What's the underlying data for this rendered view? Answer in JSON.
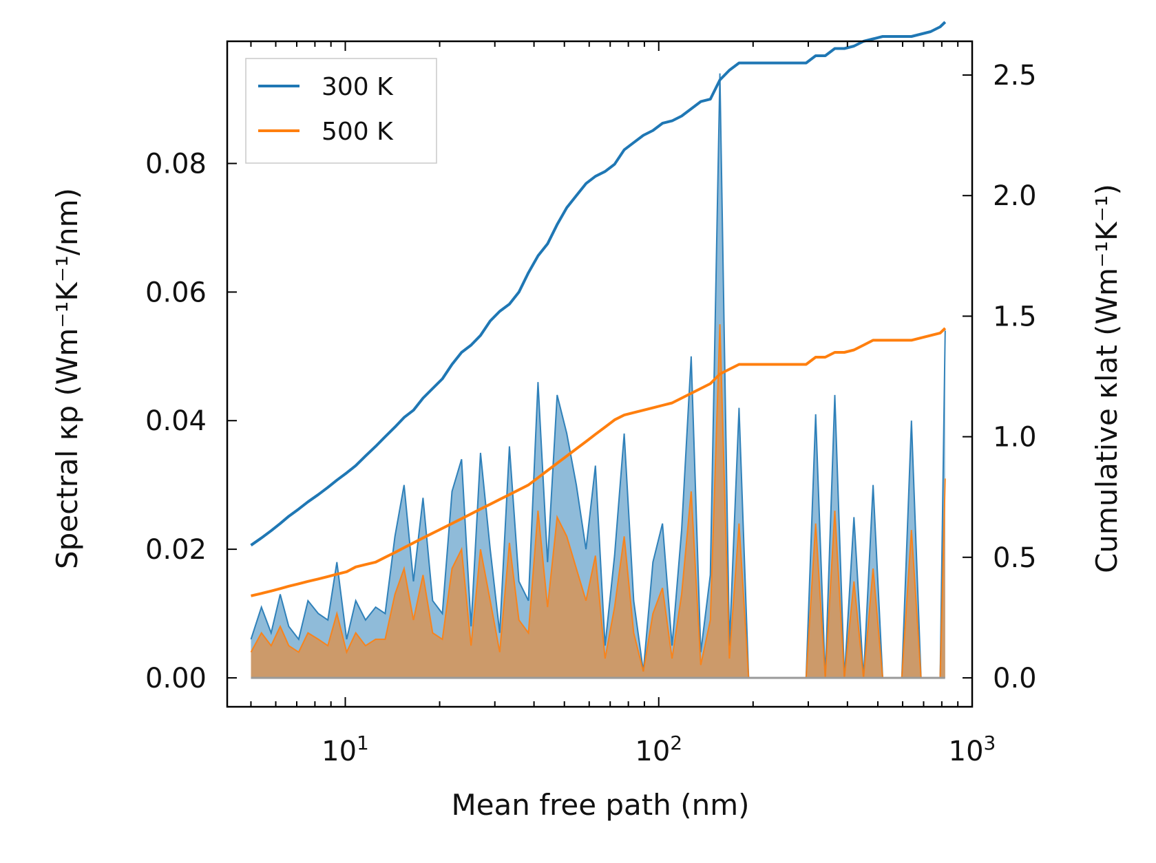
{
  "chart_data": {
    "type": "line",
    "xscale": "log",
    "xlabel": "Mean free path (nm)",
    "ylabel_left": "Spectral κp (Wm⁻¹K⁻¹/nm)",
    "ylabel_right": "Cumulative κlat (Wm⁻¹K⁻¹)",
    "xlim": [
      4.2,
      1000
    ],
    "ylim_left": [
      -0.0045,
      0.099
    ],
    "ylim_right": [
      -0.12,
      2.64
    ],
    "x_ticks": [
      {
        "value": 10,
        "label": "10",
        "exp": "1"
      },
      {
        "value": 100,
        "label": "10",
        "exp": "2"
      },
      {
        "value": 1000,
        "label": "10",
        "exp": "3"
      }
    ],
    "y_ticks_left": [
      "0.00",
      "0.02",
      "0.04",
      "0.06",
      "0.08"
    ],
    "y_ticks_right": [
      "0.0",
      "0.5",
      "1.0",
      "1.5",
      "2.0",
      "2.5"
    ],
    "legend": {
      "position": "top-left",
      "entries": [
        {
          "label": "300 K",
          "color": "#1f77b4"
        },
        {
          "label": "500 K",
          "color": "#ff7f0e"
        }
      ]
    },
    "x": [
      5.0,
      5.4,
      5.8,
      6.2,
      6.6,
      7.1,
      7.6,
      8.2,
      8.8,
      9.4,
      10.1,
      10.8,
      11.6,
      12.5,
      13.4,
      14.4,
      15.4,
      16.5,
      17.7,
      19.0,
      20.4,
      21.9,
      23.5,
      25.2,
      27.0,
      29.0,
      31.1,
      33.4,
      35.8,
      38.4,
      41.2,
      44.2,
      47.4,
      50.9,
      54.6,
      58.6,
      62.8,
      67.4,
      72.3,
      77.6,
      83.2,
      89.3,
      95.8,
      102.8,
      110.3,
      118.3,
      126.9,
      136.2,
      146.1,
      156.7,
      168.1,
      180.4,
      193.5,
      207.6,
      222.8,
      239.0,
      256.4,
      275.1,
      295.2,
      316.7,
      339.8,
      364.5,
      391.1,
      419.6,
      450.2,
      483.0,
      518.2,
      556.0,
      596.5,
      640.0,
      686.7,
      736.7,
      790.4,
      820.0
    ],
    "series": [
      {
        "name": "300 K",
        "color": "#1f77b4",
        "spectral": [
          0.006,
          0.011,
          0.007,
          0.013,
          0.008,
          0.006,
          0.012,
          0.01,
          0.009,
          0.018,
          0.006,
          0.012,
          0.009,
          0.011,
          0.01,
          0.022,
          0.03,
          0.015,
          0.028,
          0.012,
          0.01,
          0.029,
          0.034,
          0.008,
          0.035,
          0.02,
          0.007,
          0.036,
          0.015,
          0.012,
          0.046,
          0.018,
          0.044,
          0.038,
          0.03,
          0.02,
          0.033,
          0.005,
          0.019,
          0.038,
          0.012,
          0.001,
          0.018,
          0.024,
          0.005,
          0.023,
          0.05,
          0.004,
          0.016,
          0.094,
          0.005,
          0.042,
          0.0,
          0.0,
          0.0,
          0.0,
          0.0,
          0.0,
          0.0,
          0.041,
          0.0,
          0.044,
          0.0,
          0.025,
          0.0,
          0.03,
          0.0,
          0.0,
          0.0,
          0.04,
          0.0,
          0.0,
          0.0,
          0.054
        ],
        "cumulative": [
          0.55,
          0.58,
          0.61,
          0.64,
          0.67,
          0.7,
          0.73,
          0.76,
          0.79,
          0.82,
          0.85,
          0.88,
          0.92,
          0.96,
          1.0,
          1.04,
          1.08,
          1.11,
          1.16,
          1.2,
          1.24,
          1.3,
          1.35,
          1.38,
          1.42,
          1.48,
          1.52,
          1.55,
          1.6,
          1.68,
          1.75,
          1.8,
          1.88,
          1.95,
          2.0,
          2.05,
          2.08,
          2.1,
          2.13,
          2.19,
          2.22,
          2.25,
          2.27,
          2.3,
          2.31,
          2.33,
          2.36,
          2.39,
          2.4,
          2.48,
          2.52,
          2.55,
          2.55,
          2.55,
          2.55,
          2.55,
          2.55,
          2.55,
          2.55,
          2.58,
          2.58,
          2.61,
          2.61,
          2.62,
          2.64,
          2.65,
          2.66,
          2.66,
          2.66,
          2.66,
          2.67,
          2.68,
          2.7,
          2.72
        ]
      },
      {
        "name": "500 K",
        "color": "#ff7f0e",
        "spectral": [
          0.004,
          0.007,
          0.005,
          0.008,
          0.005,
          0.004,
          0.007,
          0.006,
          0.005,
          0.01,
          0.004,
          0.007,
          0.005,
          0.006,
          0.006,
          0.013,
          0.017,
          0.009,
          0.016,
          0.007,
          0.006,
          0.017,
          0.02,
          0.005,
          0.02,
          0.012,
          0.004,
          0.021,
          0.009,
          0.007,
          0.026,
          0.011,
          0.025,
          0.022,
          0.017,
          0.012,
          0.019,
          0.003,
          0.011,
          0.022,
          0.007,
          0.001,
          0.01,
          0.014,
          0.003,
          0.013,
          0.029,
          0.002,
          0.009,
          0.055,
          0.003,
          0.024,
          0.0,
          0.0,
          0.0,
          0.0,
          0.0,
          0.0,
          0.0,
          0.024,
          0.0,
          0.026,
          0.0,
          0.015,
          0.0,
          0.017,
          0.0,
          0.0,
          0.0,
          0.023,
          0.0,
          0.0,
          0.0,
          0.031
        ],
        "cumulative": [
          0.34,
          0.35,
          0.36,
          0.37,
          0.38,
          0.39,
          0.4,
          0.41,
          0.42,
          0.43,
          0.44,
          0.46,
          0.47,
          0.48,
          0.5,
          0.52,
          0.54,
          0.56,
          0.58,
          0.6,
          0.62,
          0.64,
          0.66,
          0.68,
          0.7,
          0.72,
          0.74,
          0.76,
          0.78,
          0.8,
          0.83,
          0.86,
          0.89,
          0.92,
          0.95,
          0.98,
          1.01,
          1.04,
          1.07,
          1.09,
          1.1,
          1.11,
          1.12,
          1.13,
          1.14,
          1.16,
          1.18,
          1.2,
          1.22,
          1.26,
          1.28,
          1.3,
          1.3,
          1.3,
          1.3,
          1.3,
          1.3,
          1.3,
          1.3,
          1.33,
          1.33,
          1.35,
          1.35,
          1.36,
          1.38,
          1.4,
          1.4,
          1.4,
          1.4,
          1.4,
          1.41,
          1.42,
          1.43,
          1.45
        ]
      }
    ]
  }
}
